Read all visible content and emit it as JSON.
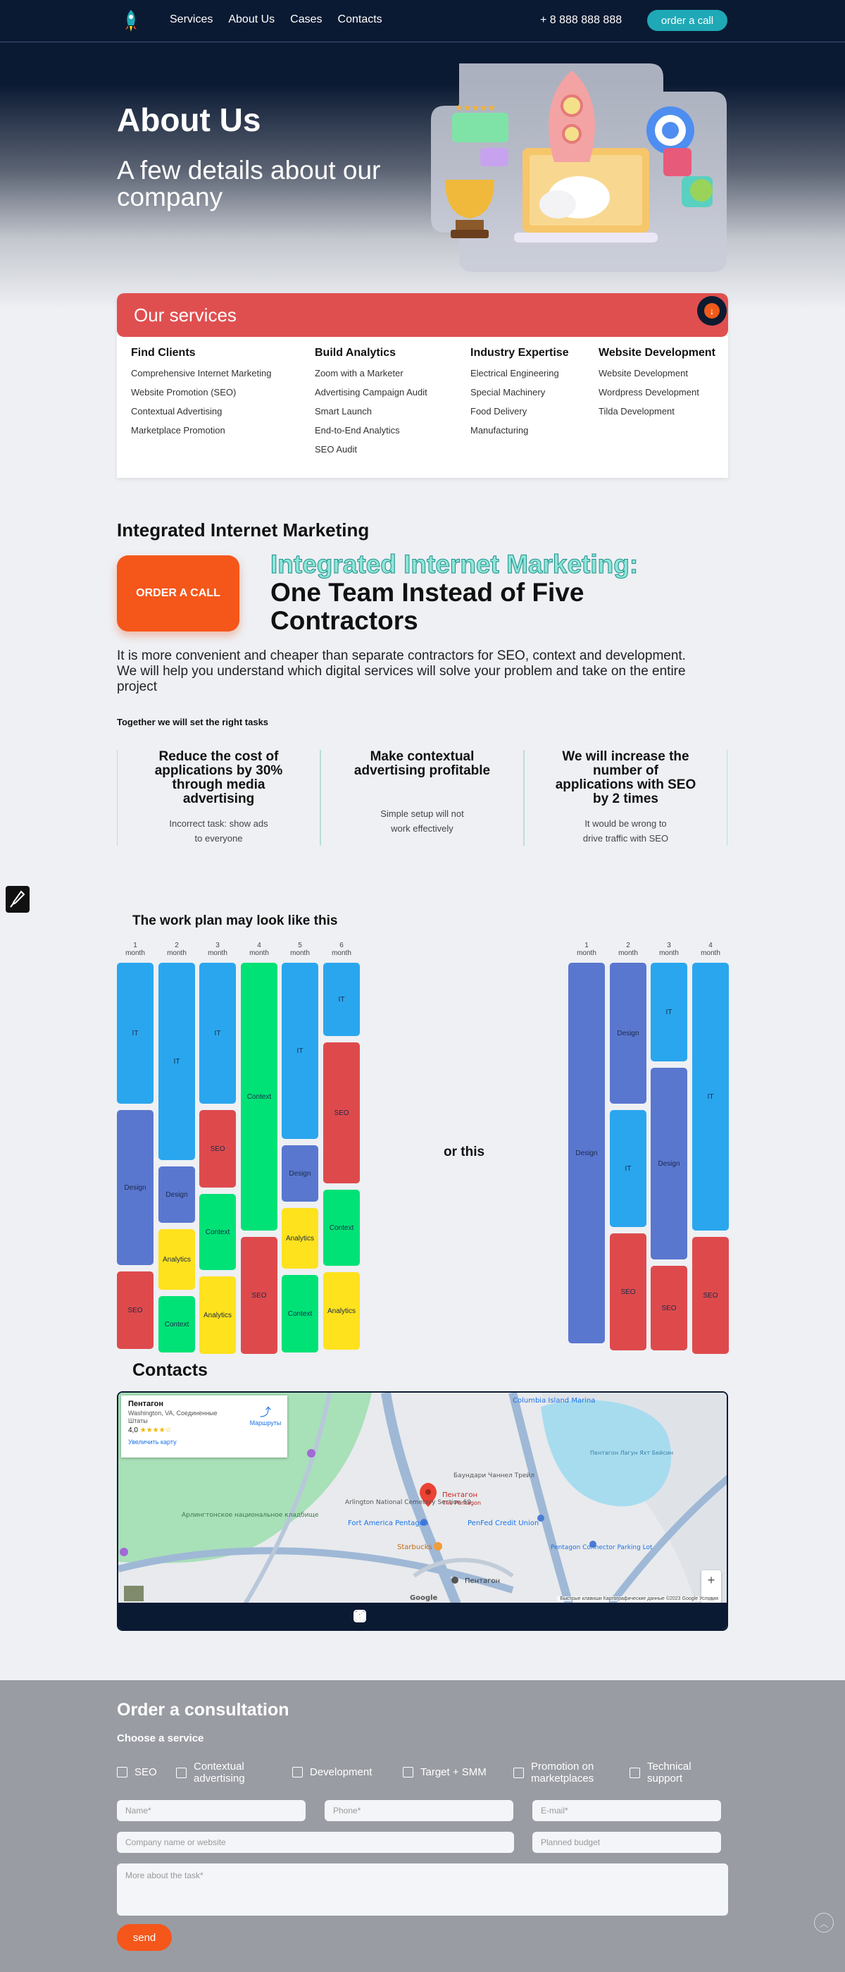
{
  "nav": {
    "links": [
      "Services",
      "About Us",
      "Cases",
      "Contacts"
    ],
    "phone": "+ 8 888 888 888",
    "order_call": "order a call"
  },
  "hero": {
    "title": "About Us",
    "subtitle": "A few details about our company"
  },
  "services": {
    "title": "Our services",
    "columns": [
      {
        "heading": "Find Clients",
        "items": [
          "Comprehensive Internet Marketing",
          "Website Promotion (SEO)",
          "Contextual Advertising",
          "Marketplace Promotion"
        ]
      },
      {
        "heading": "Build Analytics",
        "items": [
          "Zoom with a Marketer",
          "Advertising Campaign Audit",
          "Smart Launch",
          "End-to-End Analytics",
          "SEO Audit"
        ]
      },
      {
        "heading": "Industry Expertise",
        "items": [
          "Electrical Engineering",
          "Special Machinery",
          "Food Delivery",
          "Manufacturing"
        ]
      },
      {
        "heading": "Website Development",
        "items": [
          "Website Development",
          "Wordpress Development",
          "Tilda Development"
        ]
      }
    ]
  },
  "integrated": {
    "section_title": "Integrated Internet Marketing",
    "cta": "ORDER A CALL",
    "headline_accent": "Integrated Internet Marketing:",
    "headline_rest": "One Team Instead of Five Contractors",
    "lead": "It is more convenient and cheaper than separate contractors for SEO, context and development. We will help you understand which digital services will solve your problem and take on the entire project",
    "together": "Together we will set the right tasks",
    "features": [
      {
        "title": "Reduce the cost of applications by 30% through media advertising",
        "text": "Incorrect task: show ads to everyone"
      },
      {
        "title": "Make contextual advertising profitable",
        "text": "Simple setup will not work effectively"
      },
      {
        "title": "We will increase the number of applications with SEO by 2 times",
        "text": "It would be wrong to drive traffic with SEO"
      }
    ]
  },
  "plan": {
    "title": "The work plan may look like this",
    "or_this": "or this",
    "month_word": "month",
    "plan_a": [
      [
        {
          "label": "IT",
          "color": "c-it",
          "units": 10
        },
        {
          "label": "Design",
          "color": "c-design",
          "units": 11
        },
        {
          "label": "SEO",
          "color": "c-seo",
          "units": 5.5
        }
      ],
      [
        {
          "label": "IT",
          "color": "c-it",
          "units": 14
        },
        {
          "label": "Design",
          "color": "c-design",
          "units": 4
        },
        {
          "label": "Analytics",
          "color": "c-analytics",
          "units": 4.3
        },
        {
          "label": "Context",
          "color": "c-context",
          "units": 4
        }
      ],
      [
        {
          "label": "IT",
          "color": "c-it",
          "units": 10
        },
        {
          "label": "SEO",
          "color": "c-seo",
          "units": 5.5
        },
        {
          "label": "Context",
          "color": "c-context",
          "units": 5.4
        },
        {
          "label": "Analytics",
          "color": "c-analytics",
          "units": 5.5
        }
      ],
      [
        {
          "label": "Context",
          "color": "c-context",
          "units": 19
        },
        {
          "label": "SEO",
          "color": "c-seo",
          "units": 8.3
        }
      ],
      [
        {
          "label": "IT",
          "color": "c-it",
          "units": 12.5
        },
        {
          "label": "Design",
          "color": "c-design",
          "units": 4
        },
        {
          "label": "Analytics",
          "color": "c-analytics",
          "units": 4.3
        },
        {
          "label": "Context",
          "color": "c-context",
          "units": 5.5
        }
      ],
      [
        {
          "label": "IT",
          "color": "c-it",
          "units": 5.2
        },
        {
          "label": "SEO",
          "color": "c-seo",
          "units": 10
        },
        {
          "label": "Context",
          "color": "c-context",
          "units": 5.4
        },
        {
          "label": "Analytics",
          "color": "c-analytics",
          "units": 5.5
        }
      ]
    ],
    "plan_b": [
      [
        {
          "label": "Design",
          "color": "c-design",
          "units": 27
        }
      ],
      [
        {
          "label": "Design",
          "color": "c-design",
          "units": 10
        },
        {
          "label": "IT",
          "color": "c-it",
          "units": 8.3
        },
        {
          "label": "SEO",
          "color": "c-seo",
          "units": 8.3
        }
      ],
      [
        {
          "label": "IT",
          "color": "c-it",
          "units": 7
        },
        {
          "label": "Design",
          "color": "c-design",
          "units": 13.6
        },
        {
          "label": "SEO",
          "color": "c-seo",
          "units": 6
        }
      ],
      [
        {
          "label": "IT",
          "color": "c-it",
          "units": 19
        },
        {
          "label": "SEO",
          "color": "c-seo",
          "units": 8.3
        }
      ]
    ]
  },
  "contacts": {
    "title": "Contacts",
    "map_card": {
      "name": "Пентагон",
      "address": "Washington, VA, Соединенные Штаты",
      "rating": "4,0",
      "stars": "★★★★☆",
      "enlarge": "Увеличить карту",
      "route": "Маршруты"
    },
    "map_labels": {
      "pin_name": "Пентагон",
      "pin_sub": "The Pentagon",
      "cemetery": "Арлингтонское национальное кладбище",
      "fort_america": "Fort America Pentagon",
      "penfed": "PenFed Credit Union",
      "starbucks": "Starbucks",
      "pentagon_bottom": "Пентагон",
      "columbia": "Columbia Island Marina",
      "lagoon": "Пентагон Лагун Яхт Бейсин",
      "section69": "Arlington National Cemetery Section 69",
      "boundary": "Баундари Чаннел Трейл",
      "connector": "Pentagon Connector Parking Lot",
      "google": "Google",
      "attribution": "Быстрые клавиши   Картографические данные ©2023 Google   Условия"
    },
    "zoom_in": "+",
    "zoom_out": "−"
  },
  "consultation": {
    "title": "Order a consultation",
    "choose": "Choose a service",
    "services": [
      "SEO",
      "Contextual advertising",
      "Development",
      "Target + SMM",
      "Promotion on marketplaces",
      "Technical support"
    ],
    "fields": {
      "name": "Name*",
      "phone": "Phone*",
      "email": "E-mail*",
      "company": "Company name or website",
      "budget": "Planned budget",
      "task": "More about the task*"
    },
    "send": "send"
  }
}
